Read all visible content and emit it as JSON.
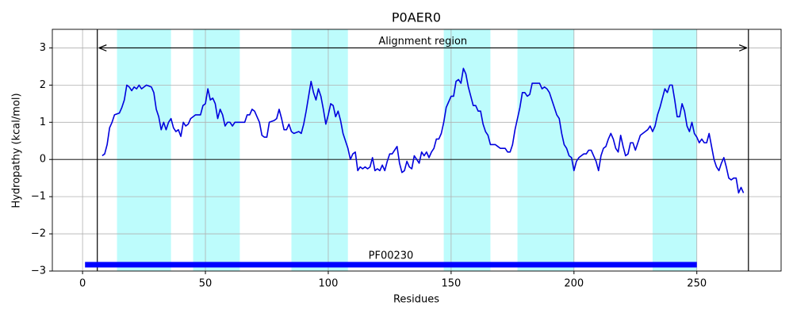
{
  "chart_data": {
    "type": "line",
    "title": "P0AER0",
    "x_label": "Residues",
    "y_label": "Hydropathy (kcal/mol)",
    "color": "#0000dd",
    "xlim": [
      -12.3,
      284.3
    ],
    "ylim": [
      -3,
      3.5
    ],
    "xticks": [
      0,
      50,
      100,
      150,
      200,
      250
    ],
    "yticks": [
      {
        "value": -3,
        "label": "−3"
      },
      {
        "value": -2,
        "label": "−2"
      },
      {
        "value": -1,
        "label": "−1"
      },
      0,
      1,
      2,
      3
    ],
    "grid": true,
    "zero_line": 0,
    "highlight_color": "#bdfcfc",
    "highlight_spans": [
      [
        14,
        36
      ],
      [
        45,
        64
      ],
      [
        85,
        108
      ],
      [
        147,
        166
      ],
      [
        177,
        200
      ],
      [
        232,
        250
      ]
    ],
    "alignment_region": {
      "label": "Alignment region",
      "start": 6,
      "end": 271,
      "y": 3
    },
    "domain": {
      "label": "PF00230",
      "start": 1,
      "end": 250,
      "y": -2.83,
      "color": "#0000ff"
    },
    "x": [
      8,
      9,
      10,
      11,
      12,
      13,
      15,
      16,
      17,
      18,
      19,
      20,
      21,
      22,
      23,
      24,
      26,
      28,
      29,
      30,
      31,
      32,
      33,
      34,
      35,
      36,
      37,
      38,
      39,
      40,
      41,
      42,
      43,
      44,
      46,
      48,
      49,
      50,
      51,
      52,
      53,
      54,
      55,
      56,
      57,
      58,
      59,
      60,
      61,
      62,
      64,
      66,
      67,
      68,
      69,
      70,
      71,
      72,
      73,
      74,
      75,
      76,
      78,
      79,
      80,
      81,
      82,
      83,
      84,
      85,
      86,
      88,
      89,
      90,
      91,
      92,
      93,
      94,
      95,
      96,
      97,
      98,
      99,
      100,
      101,
      102,
      103,
      104,
      105,
      106,
      107,
      108,
      109,
      110,
      111,
      112,
      113,
      114,
      115,
      116,
      117,
      118,
      119,
      120,
      121,
      122,
      123,
      124,
      125,
      126,
      127,
      128,
      129,
      130,
      131,
      132,
      133,
      134,
      135,
      136,
      137,
      138,
      139,
      140,
      141,
      142,
      143,
      144,
      145,
      146,
      147,
      148,
      149,
      150,
      151,
      152,
      153,
      154,
      155,
      156,
      157,
      158,
      159,
      160,
      161,
      162,
      163,
      164,
      165,
      166,
      168,
      169,
      170,
      172,
      173,
      174,
      175,
      176,
      177,
      178,
      179,
      180,
      181,
      182,
      183,
      186,
      187,
      188,
      189,
      190,
      191,
      192,
      193,
      194,
      195,
      196,
      197,
      198,
      199,
      200,
      201,
      202,
      203,
      204,
      205,
      206,
      207,
      208,
      209,
      210,
      211,
      212,
      213,
      214,
      215,
      216,
      217,
      218,
      219,
      220,
      221,
      222,
      223,
      224,
      225,
      226,
      227,
      228,
      229,
      230,
      231,
      232,
      233,
      234,
      235,
      236,
      237,
      238,
      239,
      240,
      241,
      242,
      243,
      244,
      245,
      246,
      247,
      248,
      249,
      250,
      251,
      252,
      253,
      254,
      255,
      256,
      257,
      258,
      259,
      260,
      261,
      262,
      263,
      264,
      265,
      266,
      267,
      268,
      269
    ],
    "values": [
      0.1,
      0.15,
      0.4,
      0.85,
      1.0,
      1.2,
      1.25,
      1.4,
      1.6,
      2.0,
      1.95,
      1.85,
      1.95,
      1.9,
      2.0,
      1.9,
      2.0,
      1.95,
      1.8,
      1.35,
      1.15,
      0.8,
      1.0,
      0.8,
      1.0,
      1.1,
      0.85,
      0.75,
      0.8,
      0.62,
      1.0,
      0.9,
      0.95,
      1.1,
      1.2,
      1.2,
      1.45,
      1.5,
      1.9,
      1.6,
      1.65,
      1.5,
      1.1,
      1.35,
      1.2,
      0.9,
      1.0,
      1.0,
      0.9,
      1.0,
      1.0,
      1.0,
      1.2,
      1.2,
      1.35,
      1.3,
      1.15,
      1.0,
      0.65,
      0.6,
      0.6,
      1.0,
      1.05,
      1.1,
      1.35,
      1.1,
      0.8,
      0.8,
      0.95,
      0.75,
      0.7,
      0.75,
      0.7,
      0.95,
      1.3,
      1.7,
      2.1,
      1.8,
      1.6,
      1.9,
      1.7,
      1.35,
      0.95,
      1.2,
      1.5,
      1.45,
      1.15,
      1.3,
      1.05,
      0.7,
      0.5,
      0.3,
      0.0,
      0.15,
      0.2,
      -0.3,
      -0.2,
      -0.25,
      -0.2,
      -0.25,
      -0.2,
      0.05,
      -0.3,
      -0.25,
      -0.3,
      -0.15,
      -0.3,
      -0.05,
      0.15,
      0.15,
      0.25,
      0.35,
      -0.1,
      -0.35,
      -0.3,
      -0.05,
      -0.2,
      -0.25,
      0.1,
      0.0,
      -0.1,
      0.2,
      0.1,
      0.2,
      0.05,
      0.2,
      0.3,
      0.55,
      0.55,
      0.7,
      1.0,
      1.4,
      1.55,
      1.7,
      1.7,
      2.1,
      2.15,
      2.05,
      2.45,
      2.3,
      1.95,
      1.7,
      1.45,
      1.45,
      1.3,
      1.3,
      0.95,
      0.75,
      0.65,
      0.4,
      0.4,
      0.35,
      0.3,
      0.3,
      0.2,
      0.2,
      0.4,
      0.8,
      1.1,
      1.4,
      1.8,
      1.8,
      1.7,
      1.75,
      2.05,
      2.05,
      1.9,
      1.95,
      1.9,
      1.8,
      1.6,
      1.4,
      1.2,
      1.1,
      0.7,
      0.4,
      0.3,
      0.1,
      0.05,
      -0.3,
      -0.05,
      0.05,
      0.1,
      0.15,
      0.15,
      0.25,
      0.25,
      0.1,
      -0.05,
      -0.3,
      0.1,
      0.3,
      0.35,
      0.55,
      0.7,
      0.55,
      0.3,
      0.2,
      0.65,
      0.35,
      0.1,
      0.15,
      0.45,
      0.45,
      0.25,
      0.45,
      0.65,
      0.7,
      0.75,
      0.8,
      0.9,
      0.75,
      0.9,
      1.2,
      1.4,
      1.65,
      1.9,
      1.8,
      2.0,
      2.0,
      1.6,
      1.15,
      1.15,
      1.5,
      1.3,
      0.9,
      0.75,
      1.0,
      0.7,
      0.6,
      0.45,
      0.55,
      0.45,
      0.45,
      0.7,
      0.35,
      0.0,
      -0.2,
      -0.3,
      -0.1,
      0.05,
      -0.2,
      -0.5,
      -0.55,
      -0.5,
      -0.5,
      -0.9,
      -0.75,
      -0.9
    ]
  }
}
